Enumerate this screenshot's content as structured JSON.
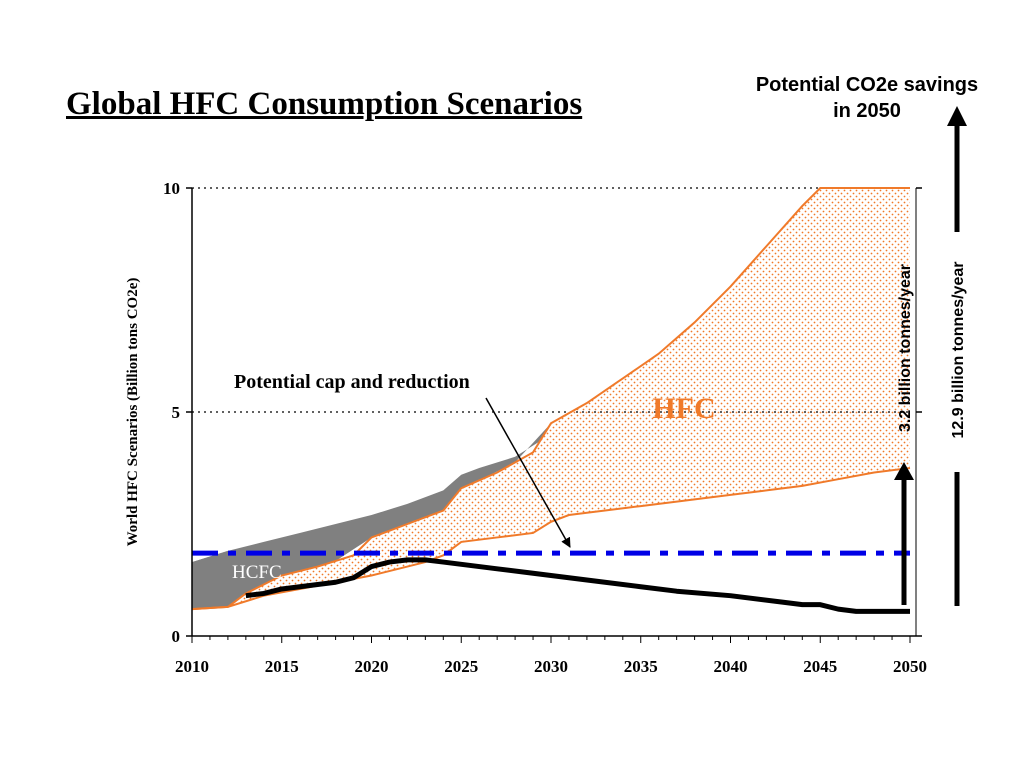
{
  "title": "Global HFC Consumption Scenarios",
  "savings_heading": [
    "Potential CO2e savings",
    "in 2050"
  ],
  "colors": {
    "hfc": "#f07a2a",
    "hcfc": "#808080",
    "cap_line": "#0000e6",
    "reduction_line": "#000000"
  },
  "chart_data": {
    "type": "area",
    "title": "",
    "xlabel": "",
    "ylabel": "World HFC Scenarios (Billion tons CO2e)",
    "xlim": [
      2010,
      2050
    ],
    "ylim": [
      0,
      10
    ],
    "x_ticks": [
      2010,
      2015,
      2020,
      2025,
      2030,
      2035,
      2040,
      2045,
      2050
    ],
    "y_ticks": [
      0,
      5,
      10
    ],
    "grid": "dotted horizontal at 5 and 10",
    "series": [
      {
        "name": "HCFC",
        "x": [
          2010,
          2012,
          2014,
          2016,
          2018,
          2020,
          2022,
          2024,
          2025,
          2026,
          2028,
          2030,
          2031,
          2032,
          2034
        ],
        "values": [
          1.65,
          1.9,
          2.1,
          2.3,
          2.5,
          2.7,
          2.95,
          3.25,
          3.6,
          3.75,
          4.0,
          4.5,
          4.75,
          4.95,
          5.2
        ]
      },
      {
        "name": "HFC",
        "x": [
          2010,
          2012,
          2013,
          2015,
          2017,
          2019,
          2020,
          2022,
          2024,
          2025,
          2027,
          2029,
          2030,
          2032,
          2034,
          2036,
          2038,
          2040,
          2042,
          2044,
          2045,
          2046,
          2048,
          2050
        ],
        "values": [
          0.6,
          0.65,
          0.95,
          1.35,
          1.55,
          1.8,
          2.2,
          2.5,
          2.8,
          3.3,
          3.65,
          4.1,
          4.75,
          5.2,
          5.75,
          6.3,
          7.0,
          7.8,
          8.7,
          9.6,
          10.0,
          10.0,
          10.0,
          10.0
        ]
      },
      {
        "name": "",
        "x": [
          2010,
          2012,
          2014,
          2016,
          2018,
          2020,
          2022,
          2023,
          2024,
          2025,
          2027,
          2029,
          2030,
          2031,
          2032,
          2035,
          2038,
          2040,
          2042,
          2044,
          2046,
          2048,
          2050
        ],
        "values": [
          0.6,
          0.65,
          0.9,
          1.05,
          1.2,
          1.35,
          1.55,
          1.65,
          1.8,
          2.1,
          2.2,
          2.3,
          2.55,
          2.7,
          2.75,
          2.9,
          3.05,
          3.15,
          3.25,
          3.35,
          3.5,
          3.65,
          3.75
        ]
      },
      {
        "name": "Potential cap and reduction",
        "x": [
          2013,
          2014,
          2015,
          2016,
          2017,
          2018,
          2019,
          2020,
          2021,
          2022,
          2023,
          2024,
          2025,
          2027,
          2029,
          2031,
          2032,
          2035,
          2037,
          2040,
          2043,
          2044,
          2045,
          2046,
          2047,
          2050
        ],
        "values": [
          0.9,
          0.95,
          1.05,
          1.1,
          1.15,
          1.2,
          1.3,
          1.55,
          1.65,
          1.7,
          1.7,
          1.65,
          1.6,
          1.5,
          1.4,
          1.3,
          1.25,
          1.1,
          1.0,
          0.9,
          0.75,
          0.7,
          0.7,
          0.6,
          0.55,
          0.55
        ]
      },
      {
        "name": "",
        "x": [
          2010,
          2050
        ],
        "values": [
          1.85,
          1.85
        ]
      }
    ],
    "annotations": {
      "hfc": "HFC",
      "hcfc": "HCFC",
      "cap": "Potential cap and reduction",
      "savings_small": "3.2 billion tonnes/year",
      "savings_large": "12.9 billion tonnes/year"
    }
  }
}
